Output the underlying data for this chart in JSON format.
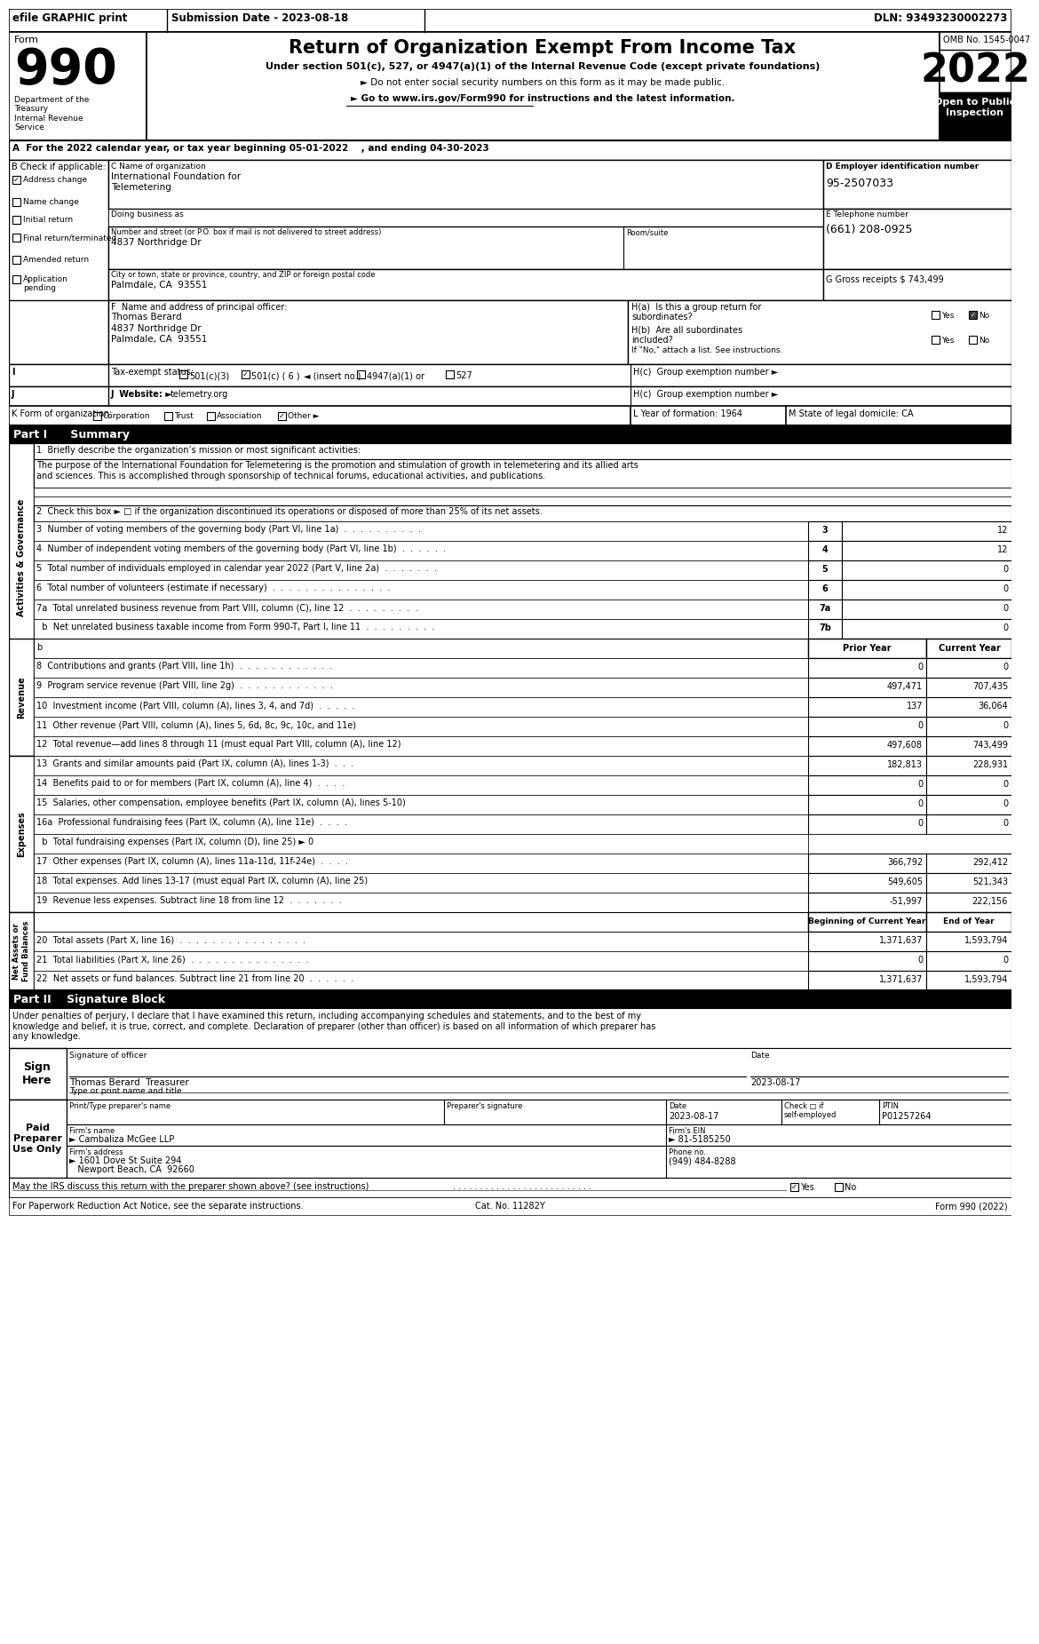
{
  "title": "Return of Organization Exempt From Income Tax",
  "subtitle1": "Under section 501(c), 527, or 4947(a)(1) of the Internal Revenue Code (except private foundations)",
  "subtitle2": "► Do not enter social security numbers on this form as it may be made public.",
  "subtitle3": "► Go to www.irs.gov/Form990 for instructions and the latest information.",
  "form_number": "990",
  "year": "2022",
  "omb": "OMB No. 1545-0047",
  "open_to_public": "Open to Public\nInspection",
  "efile_text": "efile GRAPHIC print",
  "submission_date": "Submission Date - 2023-08-18",
  "dln": "DLN: 93493230002273",
  "dept": "Department of the\nTreasury\nInternal Revenue\nService",
  "section_a": "A  For the 2022 calendar year, or tax year beginning 05-01-2022    , and ending 04-30-2023",
  "check_b": "B Check if applicable:",
  "checks": [
    "Address change",
    "Name change",
    "Initial return",
    "Final return/terminated",
    "Amended return",
    "Application\npending"
  ],
  "checked_b_idx": 0,
  "org_name_label": "C Name of organization",
  "org_name": "International Foundation for\nTelemetering",
  "doing_business_label": "Doing business as",
  "street_label": "Number and street (or P.O. box if mail is not delivered to street address)",
  "street": "4837 Northridge Dr",
  "room_label": "Room/suite",
  "city_label": "City or town, state or province, country, and ZIP or foreign postal code",
  "city": "Palmdale, CA  93551",
  "ein_label": "D Employer identification number",
  "ein": "95-2507033",
  "phone_label": "E Telephone number",
  "phone": "(661) 208-0925",
  "gross_label": "G Gross receipts $ 743,499",
  "principal_label": "F  Name and address of principal officer:",
  "principal_name": "Thomas Berard",
  "principal_address": "4837 Northridge Dr\nPalmdale, CA  93551",
  "ha_label": "H(a)  Is this a group return for",
  "ha_q": "subordinates?",
  "hb_label": "H(b)  Are all subordinates\nincluded?",
  "hb_note": "If \"No,\" attach a list. See instructions.",
  "hc_label": "H(c)  Group exemption number ►",
  "website_label": "J  Website: ►",
  "website": "telemetry.org",
  "form_org_label": "K Form of organization:",
  "year_formed_label": "L Year of formation: 1964",
  "state_legal_label": "M State of legal domicile: CA",
  "part1_title": "Part I      Summary",
  "mission_label": "1  Briefly describe the organization’s mission or most significant activities:",
  "mission_text": "The purpose of the International Foundation for Telemetering is the promotion and stimulation of growth in telemetering and its allied arts\nand sciences. This is accomplished through sponsorship of technical forums, educational activities, and publications.",
  "check2_label": "2  Check this box ► □ if the organization discontinued its operations or disposed of more than 25% of its net assets.",
  "gov_lines": [
    {
      "num": "3",
      "label": "Number of voting members of the governing body (Part VI, line 1a)  .  .  .  .  .  .  .  .  .  .",
      "col_num": "3",
      "current": "12"
    },
    {
      "num": "4",
      "label": "Number of independent voting members of the governing body (Part VI, line 1b)  .  .  .  .  .  .",
      "col_num": "4",
      "current": "12"
    },
    {
      "num": "5",
      "label": "Total number of individuals employed in calendar year 2022 (Part V, line 2a)  .  .  .  .  .  .  .",
      "col_num": "5",
      "current": "0"
    },
    {
      "num": "6",
      "label": "Total number of volunteers (estimate if necessary)  .  .  .  .  .  .  .  .  .  .  .  .  .  .  .",
      "col_num": "6",
      "current": "0"
    },
    {
      "num": "7a",
      "label": "Total unrelated business revenue from Part VIII, column (C), line 12  .  .  .  .  .  .  .  .  .",
      "col_num": "7a",
      "current": "0"
    },
    {
      "num": "  b",
      "label": "Net unrelated business taxable income from Form 990-T, Part I, line 11  .  .  .  .  .  .  .  .  .",
      "col_num": "7b",
      "current": "0"
    }
  ],
  "revenue_header": [
    "Prior Year",
    "Current Year"
  ],
  "revenue_lines": [
    {
      "num": "8",
      "label": "Contributions and grants (Part VIII, line 1h)  .  .  .  .  .  .  .  .  .  .  .  .",
      "prior": "0",
      "current": "0"
    },
    {
      "num": "9",
      "label": "Program service revenue (Part VIII, line 2g)  .  .  .  .  .  .  .  .  .  .  .  .",
      "prior": "497,471",
      "current": "707,435"
    },
    {
      "num": "10",
      "label": "Investment income (Part VIII, column (A), lines 3, 4, and 7d)  .  .  .  .  .",
      "prior": "137",
      "current": "36,064"
    },
    {
      "num": "11",
      "label": "Other revenue (Part VIII, column (A), lines 5, 6d, 8c, 9c, 10c, and 11e)",
      "prior": "0",
      "current": "0"
    },
    {
      "num": "12",
      "label": "Total revenue—add lines 8 through 11 (must equal Part VIII, column (A), line 12)",
      "prior": "497,608",
      "current": "743,499"
    }
  ],
  "expense_lines": [
    {
      "num": "13",
      "label": "Grants and similar amounts paid (Part IX, column (A), lines 1-3)  .  .  .",
      "prior": "182,813",
      "current": "228,931",
      "has_cols": true
    },
    {
      "num": "14",
      "label": "Benefits paid to or for members (Part IX, column (A), line 4)  .  .  .  .",
      "prior": "0",
      "current": "0",
      "has_cols": true
    },
    {
      "num": "15",
      "label": "Salaries, other compensation, employee benefits (Part IX, column (A), lines 5-10)",
      "prior": "0",
      "current": "0",
      "has_cols": true
    },
    {
      "num": "16a",
      "label": "Professional fundraising fees (Part IX, column (A), line 11e)  .  .  .  .",
      "prior": "0",
      "current": "0",
      "has_cols": true
    },
    {
      "num": "  b",
      "label": "Total fundraising expenses (Part IX, column (D), line 25) ► 0",
      "prior": null,
      "current": null,
      "has_cols": false
    },
    {
      "num": "17",
      "label": "Other expenses (Part IX, column (A), lines 11a-11d, 11f-24e)  .  .  .  .",
      "prior": "366,792",
      "current": "292,412",
      "has_cols": true
    },
    {
      "num": "18",
      "label": "Total expenses. Add lines 13-17 (must equal Part IX, column (A), line 25)",
      "prior": "549,605",
      "current": "521,343",
      "has_cols": true
    },
    {
      "num": "19",
      "label": "Revenue less expenses. Subtract line 18 from line 12  .  .  .  .  .  .  .",
      "prior": "-51,997",
      "current": "222,156",
      "has_cols": true
    }
  ],
  "net_assets_header": [
    "Beginning of Current Year",
    "End of Year"
  ],
  "net_assets_lines": [
    {
      "num": "20",
      "label": "Total assets (Part X, line 16)  .  .  .  .  .  .  .  .  .  .  .  .  .  .  .  .",
      "prior": "1,371,637",
      "current": "1,593,794"
    },
    {
      "num": "21",
      "label": "Total liabilities (Part X, line 26)  .  .  .  .  .  .  .  .  .  .  .  .  .  .  .",
      "prior": "0",
      "current": "0"
    },
    {
      "num": "22",
      "label": "Net assets or fund balances. Subtract line 21 from line 20  .  .  .  .  .  .",
      "prior": "1,371,637",
      "current": "1,593,794"
    }
  ],
  "part2_title": "Part II    Signature Block",
  "sign_text": "Under penalties of perjury, I declare that I have examined this return, including accompanying schedules and statements, and to the best of my\nknowledge and belief, it is true, correct, and complete. Declaration of preparer (other than officer) is based on all information of which preparer has\nany knowledge.",
  "sign_label": "Sign\nHere",
  "sign_date": "2023-08-17",
  "signer_name": "Thomas Berard  Treasurer",
  "signer_title": "Type or print name and title",
  "preparer_label": "Paid\nPreparer\nUse Only",
  "preparer_name_label": "Print/Type preparer's name",
  "preparer_sig_label": "Preparer's signature",
  "preparer_date_label": "Date",
  "preparer_date": "2023-08-17",
  "preparer_ptin_label": "PTIN",
  "preparer_ptin": "P01257264",
  "self_employed_label": "Check □ if\nself-employed",
  "firm_name_label": "Firm's name",
  "firm_name": "► Cambaliza McGee LLP",
  "firm_ein_label": "Firm's EIN",
  "firm_ein": "► 81-5185250",
  "firm_address_label": "Firm's address",
  "firm_address1": "► 1601 Dove St Suite 294",
  "firm_address2": "   Newport Beach, CA  92660",
  "firm_phone_label": "Phone no.",
  "firm_phone": "(949) 484-8288",
  "discuss_label": "May the IRS discuss this return with the preparer shown above? (see instructions)",
  "paperwork_label": "For Paperwork Reduction Act Notice, see the separate instructions.",
  "cat_label": "Cat. No. 11282Y",
  "form_label": "Form 990 (2022)"
}
